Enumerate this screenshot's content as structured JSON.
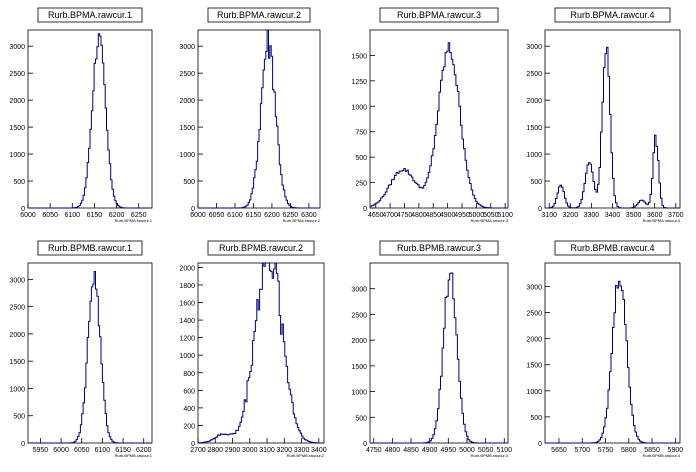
{
  "chart_data": [
    {
      "type": "line",
      "title": "Rurb.BPMA.rawcur.1",
      "xlabel": "Rurb.BPMA.rawcur.1",
      "xlim": [
        6000,
        6280
      ],
      "ylim": [
        0,
        3300
      ],
      "xticks": [
        6000,
        6050,
        6100,
        6150,
        6200,
        6250
      ],
      "yticks": [
        0,
        500,
        1000,
        1500,
        2000,
        2500,
        3000
      ],
      "xticklabels": [
        "6000",
        "6050",
        "6100",
        "6150",
        "6200",
        "6250"
      ],
      "yticklabels": [
        "0",
        "500",
        "1000",
        "1500",
        "2000",
        "2500",
        "3000"
      ],
      "series": [
        {
          "components": [
            {
              "mu": 6160,
              "sigma": 15,
              "amp": 3150
            }
          ],
          "noise": 0.06
        }
      ]
    },
    {
      "type": "line",
      "title": "Rurb.BPMA.rawcur.2",
      "xlabel": "Rurb.BPMA.rawcur.2",
      "xlim": [
        6000,
        6330
      ],
      "ylim": [
        0,
        3300
      ],
      "xticks": [
        6000,
        6050,
        6100,
        6150,
        6200,
        6250,
        6300
      ],
      "yticks": [
        0,
        500,
        1000,
        1500,
        2000,
        2500,
        3000
      ],
      "xticklabels": [
        "6000",
        "6050",
        "6100",
        "6150",
        "6200",
        "6250",
        "6300"
      ],
      "yticklabels": [
        "0",
        "500",
        "1000",
        "1500",
        "2000",
        "2500",
        "3000"
      ],
      "series": [
        {
          "components": [
            {
              "mu": 6190,
              "sigma": 20,
              "amp": 3100
            }
          ],
          "noise": 0.12
        }
      ]
    },
    {
      "type": "line",
      "title": "Rurb.BPMA.rawcur.3",
      "xlabel": "Rurb.BPMA.rawcur.3",
      "xlim": [
        4630,
        5110
      ],
      "ylim": [
        0,
        1750
      ],
      "xticks": [
        4650,
        4700,
        4750,
        4800,
        4850,
        4900,
        4950,
        5000,
        5050,
        5100
      ],
      "yticks": [
        0,
        250,
        500,
        750,
        1000,
        1250,
        1500
      ],
      "xticklabels": [
        "4650",
        "4700",
        "4750",
        "4800",
        "4850",
        "4900",
        "4950",
        "5000",
        "5050",
        "5100"
      ],
      "yticklabels": [
        "0",
        "250",
        "500",
        "750",
        "1000",
        "1250",
        "1500"
      ],
      "series": [
        {
          "components": [
            {
              "mu": 4905,
              "sigma": 38,
              "amp": 1560
            },
            {
              "mu": 4745,
              "sigma": 45,
              "amp": 380
            }
          ],
          "noise": 0.05
        }
      ]
    },
    {
      "type": "line",
      "title": "Rurb.BPMA.rawcur.4",
      "xlabel": "Rurb.BPMA.rawcur.4",
      "xlim": [
        3080,
        3720
      ],
      "ylim": [
        0,
        3300
      ],
      "xticks": [
        3100,
        3200,
        3300,
        3400,
        3500,
        3600,
        3700
      ],
      "yticks": [
        0,
        500,
        1000,
        1500,
        2000,
        2500,
        3000
      ],
      "xticklabels": [
        "3100",
        "3200",
        "3300",
        "3400",
        "3500",
        "3600",
        "3700"
      ],
      "yticklabels": [
        "0",
        "500",
        "1000",
        "1500",
        "2000",
        "2500",
        "3000"
      ],
      "series": [
        {
          "components": [
            {
              "mu": 3370,
              "sigma": 18,
              "amp": 3050
            },
            {
              "mu": 3290,
              "sigma": 20,
              "amp": 820
            },
            {
              "mu": 3155,
              "sigma": 16,
              "amp": 430
            },
            {
              "mu": 3605,
              "sigma": 13,
              "amp": 1300
            },
            {
              "mu": 3540,
              "sigma": 18,
              "amp": 150
            }
          ],
          "noise": 0.06
        }
      ]
    },
    {
      "type": "line",
      "title": "Rurb.BPMB.rawcur.1",
      "xlabel": "Rurb.BPMB.rawcur.1",
      "xlim": [
        5920,
        6220
      ],
      "ylim": [
        0,
        3300
      ],
      "xticks": [
        5950,
        6000,
        6050,
        6100,
        6150,
        6200
      ],
      "yticks": [
        0,
        500,
        1000,
        1500,
        2000,
        2500,
        3000
      ],
      "xticklabels": [
        "5950",
        "6000",
        "6050",
        "6100",
        "6150",
        "6200"
      ],
      "yticklabels": [
        "0",
        "500",
        "1000",
        "1500",
        "2000",
        "2500",
        "3000"
      ],
      "series": [
        {
          "components": [
            {
              "mu": 6080,
              "sigma": 15,
              "amp": 3050
            }
          ],
          "noise": 0.06
        }
      ]
    },
    {
      "type": "line",
      "title": "Rurb.BPMB.rawcur.2",
      "xlabel": "Rurb.BPMB.rawcur.2",
      "xlim": [
        2700,
        3430
      ],
      "ylim": [
        0,
        2050
      ],
      "xticks": [
        2700,
        2800,
        2900,
        3000,
        3100,
        3200,
        3300,
        3400
      ],
      "yticks": [
        0,
        200,
        400,
        600,
        800,
        1000,
        1200,
        1400,
        1600,
        1800,
        2000
      ],
      "xticklabels": [
        "2700",
        "2800",
        "2900",
        "3000",
        "3100",
        "3200",
        "3300",
        "3400"
      ],
      "yticklabels": [
        "0",
        "200",
        "400",
        "600",
        "800",
        "1000",
        "1200",
        "1400",
        "1600",
        "1800",
        "2000"
      ],
      "series": [
        {
          "components": [
            {
              "mu": 3130,
              "sigma": 70,
              "amp": 1800
            },
            {
              "mu": 3050,
              "sigma": 60,
              "amp": 700
            },
            {
              "mu": 2850,
              "sigma": 50,
              "amp": 100
            }
          ],
          "noise": 0.14
        }
      ]
    },
    {
      "type": "line",
      "title": "Rurb.BPMB.rawcur.3",
      "xlabel": "Rurb.BPMB.rawcur.3",
      "xlim": [
        4740,
        5110
      ],
      "ylim": [
        0,
        3500
      ],
      "xticks": [
        4750,
        4800,
        4850,
        4900,
        4950,
        5000,
        5050,
        5100
      ],
      "yticks": [
        0,
        500,
        1000,
        1500,
        2000,
        2500,
        3000
      ],
      "xticklabels": [
        "4750",
        "4800",
        "4850",
        "4900",
        "4950",
        "5000",
        "5050",
        "5100"
      ],
      "yticklabels": [
        "0",
        "500",
        "1000",
        "1500",
        "2000",
        "2500",
        "3000"
      ],
      "series": [
        {
          "components": [
            {
              "mu": 4955,
              "sigma": 18,
              "amp": 3300
            }
          ],
          "noise": 0.06
        }
      ]
    },
    {
      "type": "line",
      "title": "Rurb.BPMB.rawcur.4",
      "xlabel": "Rurb.BPMB.rawcur.4",
      "xlim": [
        5620,
        5910
      ],
      "ylim": [
        0,
        3450
      ],
      "xticks": [
        5650,
        5700,
        5750,
        5800,
        5850,
        5900
      ],
      "yticks": [
        0,
        500,
        1000,
        1500,
        2000,
        2500,
        3000
      ],
      "xticklabels": [
        "5650",
        "5700",
        "5750",
        "5800",
        "5850",
        "5900"
      ],
      "yticklabels": [
        "0",
        "500",
        "1000",
        "1500",
        "2000",
        "2500",
        "3000"
      ],
      "series": [
        {
          "components": [
            {
              "mu": 5780,
              "sigma": 15,
              "amp": 3200
            }
          ],
          "noise": 0.06
        }
      ]
    }
  ]
}
